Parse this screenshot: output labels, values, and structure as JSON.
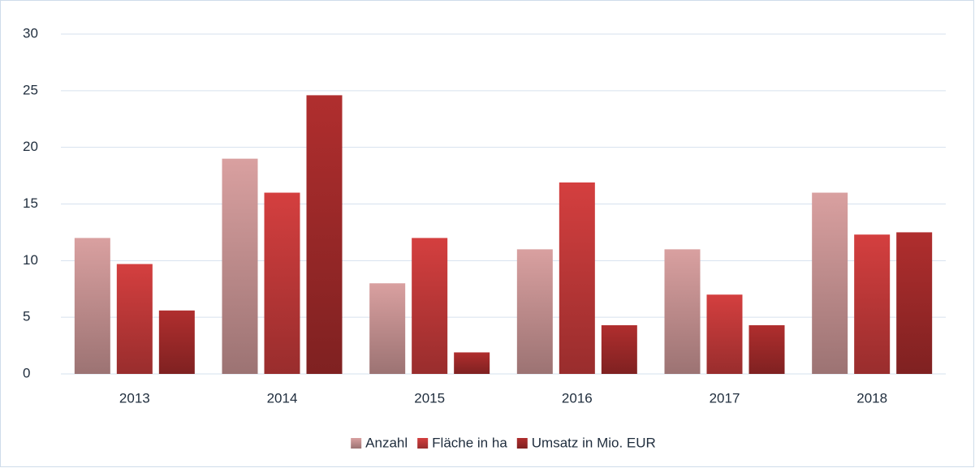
{
  "chart_data": {
    "type": "bar",
    "categories": [
      "2013",
      "2014",
      "2015",
      "2016",
      "2017",
      "2018"
    ],
    "series": [
      {
        "name": "Anzahl",
        "color": "#d9a0a0",
        "values": [
          12,
          19,
          8,
          11,
          11,
          16
        ]
      },
      {
        "name": "Fläche in ha",
        "color": "#d43f3f",
        "values": [
          9.7,
          16,
          12,
          16.9,
          7,
          12.3
        ]
      },
      {
        "name": "Umsatz in Mio. EUR",
        "color": "#b02e2e",
        "values": [
          5.6,
          24.6,
          1.9,
          4.3,
          4.3,
          12.5
        ]
      }
    ],
    "ylim": [
      0,
      30
    ],
    "yticks": [
      0,
      5,
      10,
      15,
      20,
      25,
      30
    ],
    "grid": true,
    "legend": "bottom"
  }
}
